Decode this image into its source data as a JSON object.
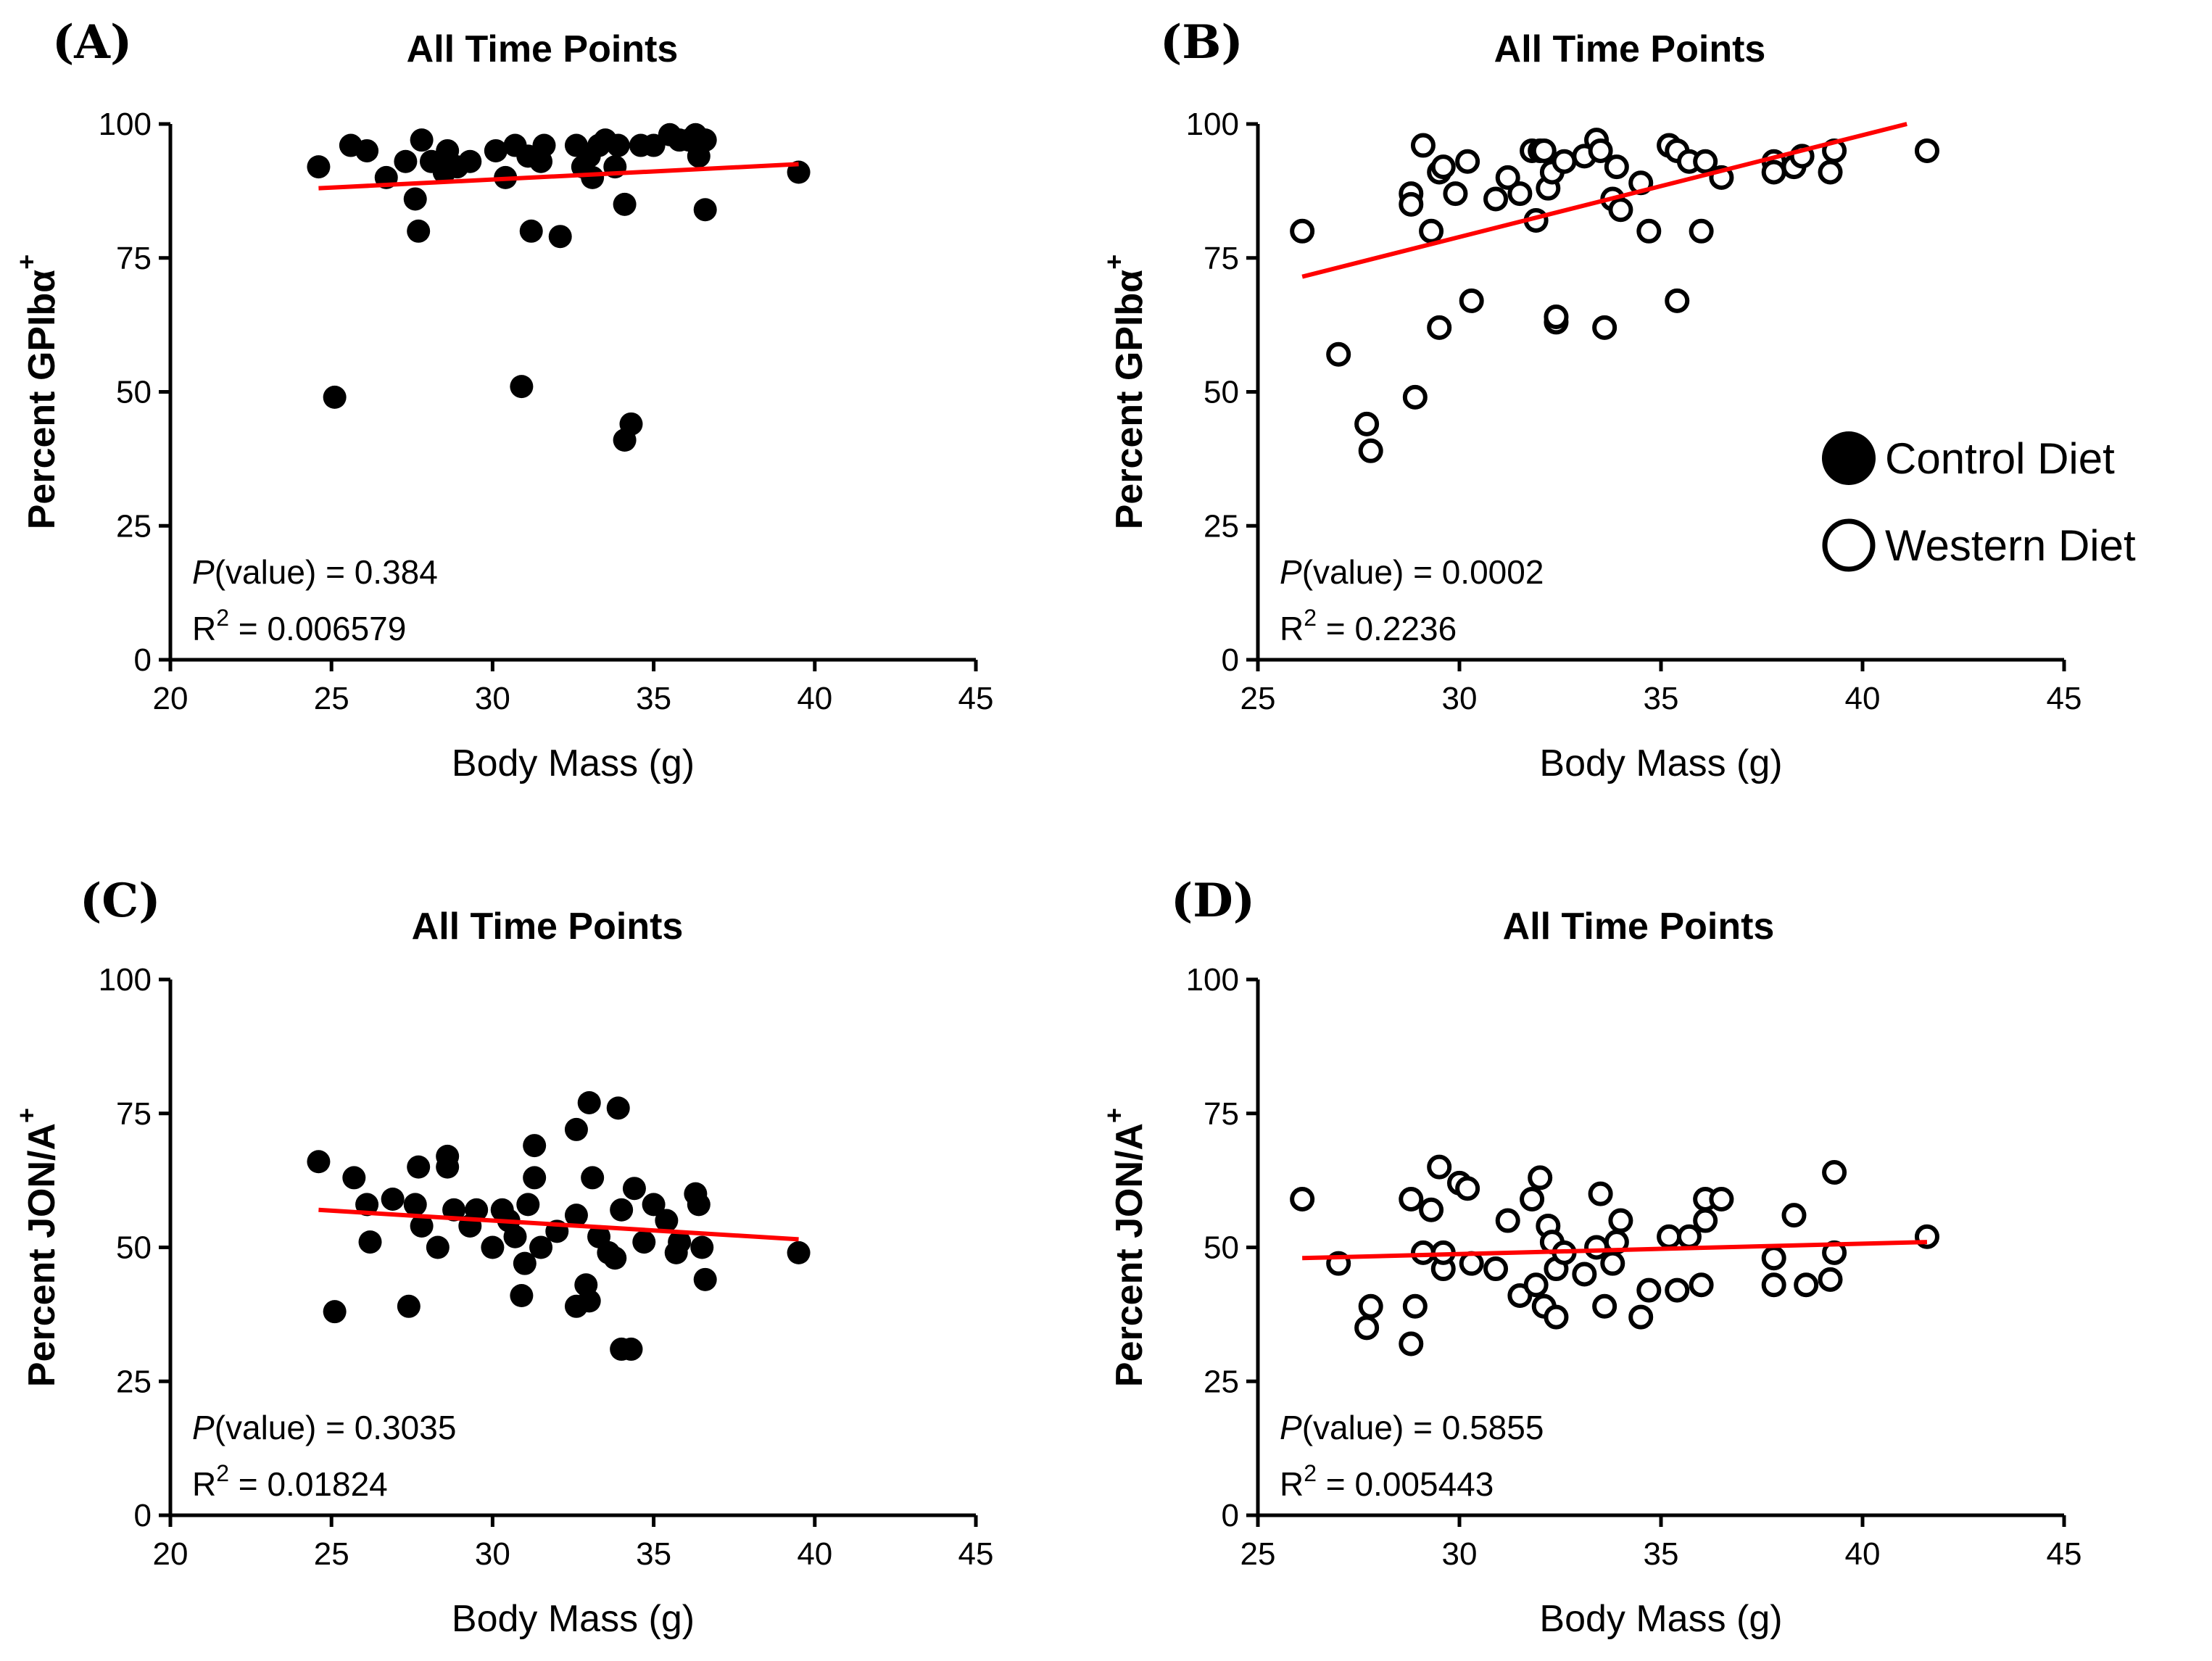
{
  "chart_data": [
    {
      "panel": "(A)",
      "type": "scatter",
      "title": "All Time Points",
      "xlabel": "Body Mass (g)",
      "ylabel": "Percent GPIbα",
      "ylabel_sup": "+",
      "xlim": [
        20,
        45
      ],
      "ylim": [
        0,
        100
      ],
      "xticks": [
        20,
        25,
        30,
        35,
        40,
        45
      ],
      "yticks": [
        0,
        25,
        50,
        75,
        100
      ],
      "marker": "filled",
      "p_label": "P",
      "p_rest": "(value) = 0.384",
      "r2_label": "R",
      "r2_sup": "2",
      "r2_rest": " = 0.006579",
      "fit": {
        "x": [
          24.6,
          39.5
        ],
        "y": [
          88.0,
          92.5
        ],
        "color": "#ff0000"
      },
      "points": [
        [
          24.6,
          92
        ],
        [
          25.1,
          49
        ],
        [
          25.6,
          96
        ],
        [
          26.1,
          95
        ],
        [
          26.7,
          90
        ],
        [
          27.3,
          93
        ],
        [
          27.6,
          86
        ],
        [
          27.7,
          80
        ],
        [
          27.8,
          97
        ],
        [
          28.1,
          93
        ],
        [
          28.5,
          91
        ],
        [
          28.6,
          95
        ],
        [
          28.9,
          92
        ],
        [
          29.3,
          93
        ],
        [
          30.1,
          95
        ],
        [
          30.4,
          90
        ],
        [
          30.7,
          96
        ],
        [
          30.9,
          51
        ],
        [
          31.1,
          94
        ],
        [
          31.2,
          80
        ],
        [
          31.5,
          93
        ],
        [
          31.6,
          96
        ],
        [
          32.1,
          79
        ],
        [
          32.6,
          96
        ],
        [
          32.8,
          92
        ],
        [
          33.0,
          94
        ],
        [
          33.1,
          90
        ],
        [
          33.3,
          96
        ],
        [
          33.5,
          97
        ],
        [
          33.8,
          92
        ],
        [
          33.9,
          96
        ],
        [
          34.1,
          85
        ],
        [
          34.1,
          41
        ],
        [
          34.3,
          44
        ],
        [
          34.6,
          96
        ],
        [
          35.0,
          96
        ],
        [
          35.5,
          98
        ],
        [
          35.8,
          97
        ],
        [
          36.1,
          97
        ],
        [
          36.3,
          98
        ],
        [
          36.4,
          94
        ],
        [
          36.6,
          97
        ],
        [
          36.6,
          84
        ],
        [
          39.5,
          91
        ]
      ]
    },
    {
      "panel": "(B)",
      "type": "scatter",
      "title": "All Time Points",
      "xlabel": "Body Mass (g)",
      "ylabel": "Percent GPIbα",
      "ylabel_sup": "+",
      "xlim": [
        25,
        45
      ],
      "ylim": [
        0,
        100
      ],
      "xticks": [
        25,
        30,
        35,
        40,
        45
      ],
      "yticks": [
        0,
        25,
        50,
        75,
        100
      ],
      "marker": "open",
      "p_label": "P",
      "p_rest": "(value) = 0.0002",
      "r2_label": "R",
      "r2_sup": "2",
      "r2_rest": " = 0.2236",
      "fit": {
        "x": [
          26.1,
          41.1
        ],
        "y": [
          71.5,
          100.0
        ],
        "color": "#ff0000"
      },
      "points": [
        [
          26.1,
          80
        ],
        [
          27.0,
          57
        ],
        [
          27.7,
          44
        ],
        [
          27.8,
          39
        ],
        [
          28.8,
          87
        ],
        [
          28.8,
          85
        ],
        [
          28.9,
          49
        ],
        [
          29.1,
          96
        ],
        [
          29.3,
          80
        ],
        [
          29.5,
          91
        ],
        [
          29.5,
          62
        ],
        [
          29.6,
          92
        ],
        [
          29.9,
          87
        ],
        [
          30.2,
          93
        ],
        [
          30.3,
          67
        ],
        [
          30.9,
          86
        ],
        [
          31.2,
          90
        ],
        [
          31.5,
          87
        ],
        [
          31.8,
          95
        ],
        [
          31.9,
          82
        ],
        [
          32.0,
          95
        ],
        [
          32.1,
          95
        ],
        [
          32.2,
          88
        ],
        [
          32.3,
          91
        ],
        [
          32.4,
          63
        ],
        [
          32.4,
          64
        ],
        [
          32.6,
          93
        ],
        [
          33.1,
          94
        ],
        [
          33.4,
          97
        ],
        [
          33.5,
          95
        ],
        [
          33.6,
          62
        ],
        [
          33.8,
          86
        ],
        [
          33.9,
          92
        ],
        [
          34.0,
          84
        ],
        [
          34.5,
          89
        ],
        [
          34.7,
          80
        ],
        [
          35.2,
          96
        ],
        [
          35.4,
          67
        ],
        [
          35.4,
          95
        ],
        [
          35.7,
          93
        ],
        [
          36.0,
          80
        ],
        [
          36.1,
          93
        ],
        [
          36.5,
          90
        ],
        [
          37.8,
          93
        ],
        [
          37.8,
          91
        ],
        [
          38.3,
          92
        ],
        [
          38.5,
          94
        ],
        [
          39.2,
          91
        ],
        [
          39.3,
          95
        ],
        [
          41.6,
          95
        ]
      ]
    },
    {
      "panel": "(C)",
      "type": "scatter",
      "title": "All Time Points",
      "xlabel": "Body Mass (g)",
      "ylabel": "Percent JON/A",
      "ylabel_sup": "+",
      "xlim": [
        20,
        45
      ],
      "ylim": [
        0,
        100
      ],
      "xticks": [
        20,
        25,
        30,
        35,
        40,
        45
      ],
      "yticks": [
        0,
        25,
        50,
        75,
        100
      ],
      "marker": "filled",
      "p_label": "P",
      "p_rest": "(value) = 0.3035",
      "r2_label": "R",
      "r2_sup": "2",
      "r2_rest": " = 0.01824",
      "fit": {
        "x": [
          24.6,
          39.5
        ],
        "y": [
          57.0,
          51.5
        ],
        "color": "#ff0000"
      },
      "points": [
        [
          24.6,
          66
        ],
        [
          25.1,
          38
        ],
        [
          25.7,
          63
        ],
        [
          26.1,
          58
        ],
        [
          26.2,
          51
        ],
        [
          26.9,
          59
        ],
        [
          27.4,
          39
        ],
        [
          27.6,
          58
        ],
        [
          27.7,
          65
        ],
        [
          27.8,
          54
        ],
        [
          28.3,
          50
        ],
        [
          28.6,
          67
        ],
        [
          28.6,
          65
        ],
        [
          28.8,
          57
        ],
        [
          29.3,
          54
        ],
        [
          29.5,
          57
        ],
        [
          30.0,
          50
        ],
        [
          30.3,
          57
        ],
        [
          30.5,
          55
        ],
        [
          30.7,
          52
        ],
        [
          30.9,
          41
        ],
        [
          31.0,
          47
        ],
        [
          31.1,
          58
        ],
        [
          31.3,
          63
        ],
        [
          31.3,
          69
        ],
        [
          31.5,
          50
        ],
        [
          32.0,
          53
        ],
        [
          32.6,
          56
        ],
        [
          32.6,
          39
        ],
        [
          32.6,
          72
        ],
        [
          32.9,
          43
        ],
        [
          33.0,
          77
        ],
        [
          33.0,
          40
        ],
        [
          33.1,
          63
        ],
        [
          33.3,
          52
        ],
        [
          33.6,
          49
        ],
        [
          33.8,
          48
        ],
        [
          33.9,
          76
        ],
        [
          34.0,
          31
        ],
        [
          34.0,
          57
        ],
        [
          34.3,
          31
        ],
        [
          34.4,
          61
        ],
        [
          34.7,
          51
        ],
        [
          35.0,
          58
        ],
        [
          35.4,
          55
        ],
        [
          35.7,
          49
        ],
        [
          35.8,
          51
        ],
        [
          36.3,
          60
        ],
        [
          36.4,
          58
        ],
        [
          36.5,
          50
        ],
        [
          36.6,
          44
        ],
        [
          39.5,
          49
        ]
      ]
    },
    {
      "panel": "(D)",
      "type": "scatter",
      "title": "All Time Points",
      "xlabel": "Body Mass (g)",
      "ylabel": "Percent JON/A",
      "ylabel_sup": "+",
      "xlim": [
        25,
        45
      ],
      "ylim": [
        0,
        100
      ],
      "xticks": [
        25,
        30,
        35,
        40,
        45
      ],
      "yticks": [
        0,
        25,
        50,
        75,
        100
      ],
      "marker": "open",
      "p_label": "P",
      "p_rest": "(value) = 0.5855",
      "r2_label": "R",
      "r2_sup": "2",
      "r2_rest": " = 0.005443",
      "fit": {
        "x": [
          26.1,
          41.6
        ],
        "y": [
          48.0,
          51.0
        ],
        "color": "#ff0000"
      },
      "points": [
        [
          26.1,
          59
        ],
        [
          27.0,
          47
        ],
        [
          27.7,
          35
        ],
        [
          27.8,
          39
        ],
        [
          28.8,
          59
        ],
        [
          28.8,
          32
        ],
        [
          28.9,
          39
        ],
        [
          29.1,
          49
        ],
        [
          29.3,
          57
        ],
        [
          29.5,
          65
        ],
        [
          29.6,
          46
        ],
        [
          29.6,
          49
        ],
        [
          30.0,
          62
        ],
        [
          30.2,
          61
        ],
        [
          30.3,
          47
        ],
        [
          30.9,
          46
        ],
        [
          31.2,
          55
        ],
        [
          31.5,
          41
        ],
        [
          31.8,
          59
        ],
        [
          31.9,
          43
        ],
        [
          32.0,
          63
        ],
        [
          32.1,
          39
        ],
        [
          32.2,
          54
        ],
        [
          32.3,
          51
        ],
        [
          32.4,
          37
        ],
        [
          32.4,
          46
        ],
        [
          32.6,
          49
        ],
        [
          33.1,
          45
        ],
        [
          33.4,
          50
        ],
        [
          33.5,
          60
        ],
        [
          33.6,
          39
        ],
        [
          33.8,
          47
        ],
        [
          33.9,
          51
        ],
        [
          34.0,
          55
        ],
        [
          34.5,
          37
        ],
        [
          34.7,
          42
        ],
        [
          35.2,
          52
        ],
        [
          35.4,
          42
        ],
        [
          35.7,
          52
        ],
        [
          36.0,
          43
        ],
        [
          36.1,
          59
        ],
        [
          36.1,
          55
        ],
        [
          36.5,
          59
        ],
        [
          37.8,
          48
        ],
        [
          37.8,
          43
        ],
        [
          38.3,
          56
        ],
        [
          38.6,
          43
        ],
        [
          39.2,
          44
        ],
        [
          39.3,
          64
        ],
        [
          39.3,
          49
        ],
        [
          41.6,
          52
        ]
      ]
    }
  ],
  "legend": {
    "items": [
      {
        "label": "Control Diet",
        "marker": "filled"
      },
      {
        "label": "Western Diet",
        "marker": "open"
      }
    ]
  }
}
